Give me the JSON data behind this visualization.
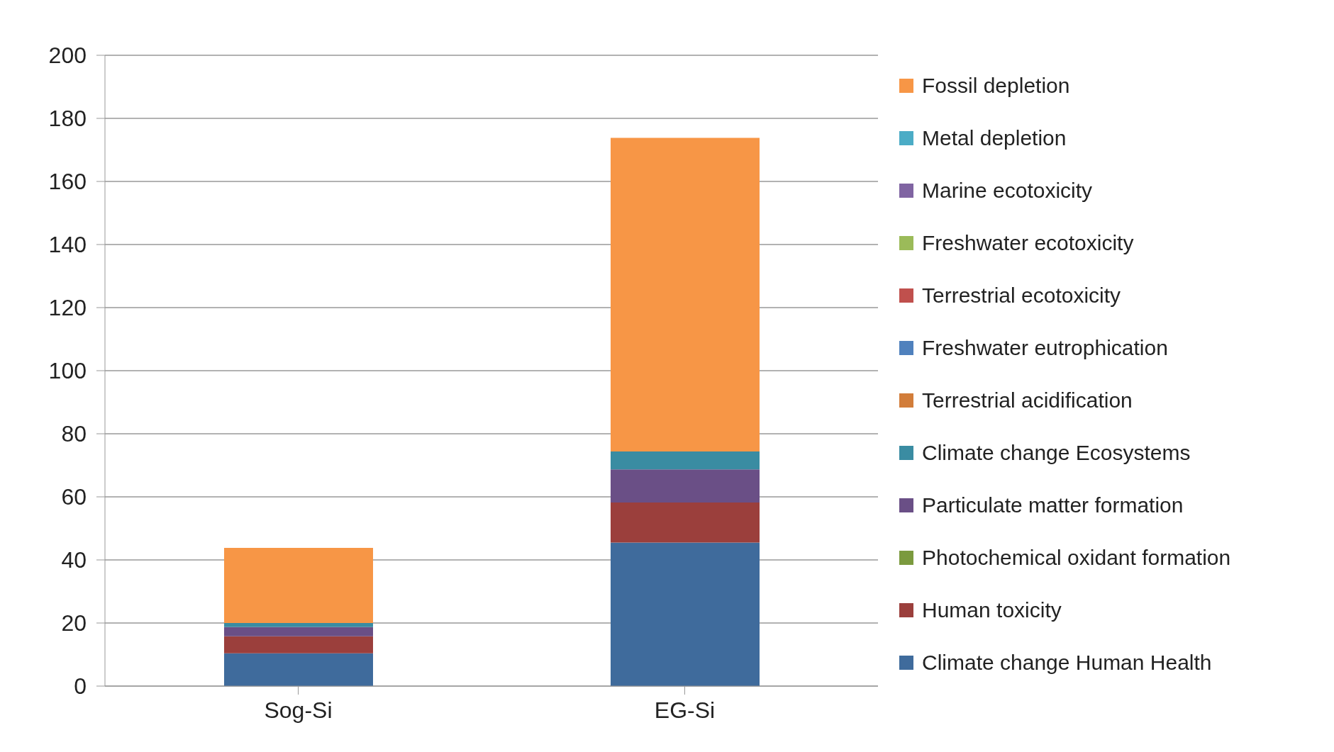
{
  "chart_data": {
    "type": "bar",
    "stacked": true,
    "categories": [
      "Sog-Si",
      "EG-Si"
    ],
    "ylim": [
      0,
      200
    ],
    "yticks": [
      0,
      20,
      40,
      60,
      80,
      100,
      120,
      140,
      160,
      180,
      200
    ],
    "grid": "y",
    "legend": "right",
    "series": [
      {
        "name": "Climate change Human Health",
        "color": "#3f6b9c",
        "values": [
          10.4,
          45.5
        ]
      },
      {
        "name": "Human toxicity",
        "color": "#9b3f3c",
        "values": [
          5.4,
          12.7
        ]
      },
      {
        "name": "Photochemical oxidant formation",
        "color": "#7b9a3e",
        "values": [
          0,
          0
        ]
      },
      {
        "name": "Particulate matter formation",
        "color": "#6a4f86",
        "values": [
          2.9,
          10.5
        ]
      },
      {
        "name": "Climate change Ecosystems",
        "color": "#3a8ca2",
        "values": [
          1.3,
          5.7
        ]
      },
      {
        "name": "Terrestrial acidification",
        "color": "#d27d3a",
        "values": [
          0,
          0
        ]
      },
      {
        "name": "Freshwater eutrophication",
        "color": "#4f81bd",
        "values": [
          0,
          0
        ]
      },
      {
        "name": "Terrestrial ecotoxicity",
        "color": "#c0504d",
        "values": [
          0,
          0
        ]
      },
      {
        "name": "Freshwater ecotoxicity",
        "color": "#9bbb59",
        "values": [
          0,
          0
        ]
      },
      {
        "name": "Marine ecotoxicity",
        "color": "#8064a2",
        "values": [
          0,
          0
        ]
      },
      {
        "name": "Metal depletion",
        "color": "#4bacc6",
        "values": [
          0,
          0
        ]
      },
      {
        "name": "Fossil depletion",
        "color": "#f79646",
        "values": [
          23.8,
          99.4
        ]
      }
    ]
  }
}
